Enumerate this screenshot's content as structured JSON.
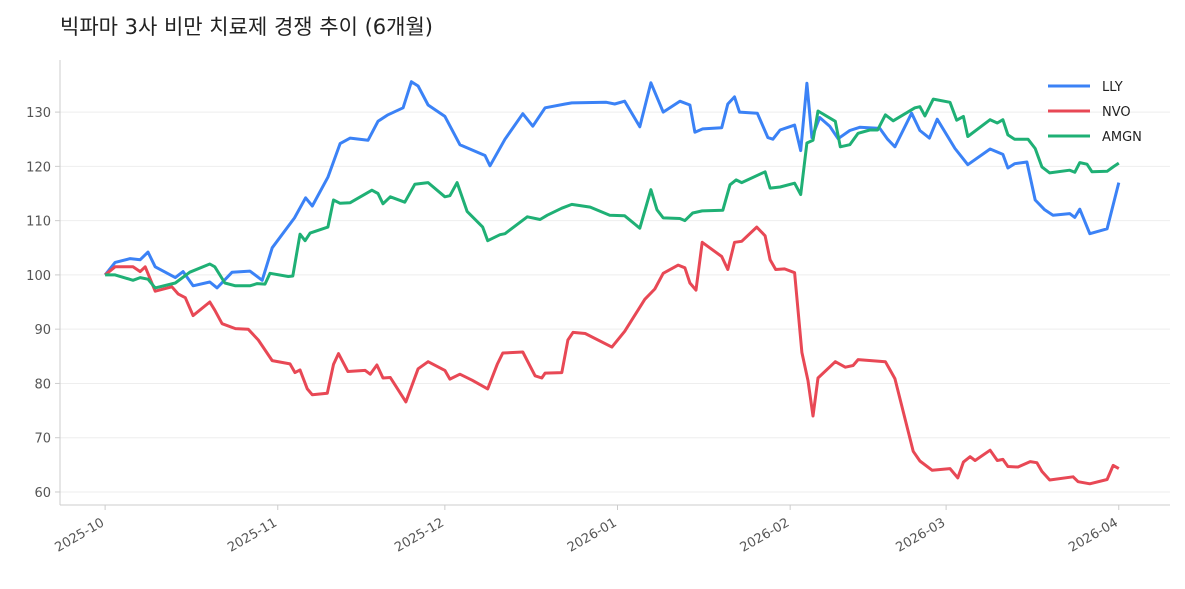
{
  "chart_data": {
    "type": "line",
    "title": "빅파마 3사 비만 치료제 경쟁 추이 (6개월)",
    "xlim": [
      -8.1,
      191.2
    ],
    "ylim": [
      57.6,
      139.6
    ],
    "xticks": [
      {
        "value": 0,
        "label": "2025-10"
      },
      {
        "value": 31,
        "label": "2025-11"
      },
      {
        "value": 61,
        "label": "2025-12"
      },
      {
        "value": 92,
        "label": "2026-01"
      },
      {
        "value": 123,
        "label": "2026-02"
      },
      {
        "value": 151,
        "label": "2026-03"
      },
      {
        "value": 182,
        "label": "2026-04"
      }
    ],
    "yticks": [
      60,
      70,
      80,
      90,
      100,
      110,
      120,
      130
    ],
    "grid": true,
    "legend": "upper right",
    "series": [
      {
        "name": "LLY",
        "color": "#3b82f6",
        "x": [
          0,
          1.8,
          4.5,
          6.3,
          7.7,
          9,
          12.6,
          14,
          15.8,
          18.8,
          20.1,
          22.8,
          26,
          28.2,
          30,
          34,
          36,
          37.2,
          40,
          42.2,
          44,
          47.2,
          49,
          50.8,
          53.5,
          55,
          56.2,
          58,
          61,
          63.7,
          68.2,
          69.1,
          71.8,
          75,
          76.8,
          79,
          82.6,
          83.8,
          90,
          91.5,
          93.3,
          96,
          98,
          100.2,
          103.2,
          105,
          105.9,
          107.3,
          110.7,
          111.8,
          113,
          113.9,
          117.1,
          119,
          119.9,
          121.2,
          123.8,
          124.9,
          126,
          126.9,
          128.3,
          130.1,
          131.6,
          133.7,
          135.5,
          139.1,
          140.5,
          141.8,
          144.8,
          146.3,
          148,
          149.4,
          152.6,
          154.9,
          158.9,
          161.2,
          162.1,
          163.3,
          165.5,
          167,
          168.7,
          170.2,
          173.2,
          174.1,
          175,
          176.8,
          179.9,
          182
        ],
        "values": [
          100,
          102.3,
          103,
          102.8,
          104.2,
          101.5,
          99.5,
          100.6,
          98,
          98.7,
          97.6,
          100.5,
          100.7,
          99,
          105,
          110.5,
          114.2,
          112.7,
          118,
          124.2,
          125.2,
          124.8,
          128.3,
          129.5,
          130.8,
          135.6,
          134.8,
          131.3,
          129.2,
          124,
          122,
          120.1,
          125,
          129.7,
          127.4,
          130.8,
          131.5,
          131.7,
          131.8,
          131.5,
          132,
          127.3,
          135.4,
          130,
          132,
          131.3,
          126.3,
          126.9,
          127.1,
          131.5,
          132.8,
          130,
          129.8,
          125.3,
          125,
          126.7,
          127.6,
          122.9,
          135.3,
          125.3,
          129,
          127.4,
          125.1,
          126.6,
          127.2,
          127,
          125,
          123.6,
          129.8,
          126.6,
          125.2,
          128.7,
          123.3,
          120.3,
          123.2,
          122.2,
          119.7,
          120.5,
          120.8,
          113.8,
          112,
          111,
          111.3,
          110.6,
          112.1,
          107.6,
          108.5,
          117
        ]
      },
      {
        "name": "NVO",
        "color": "#e84855",
        "x": [
          0,
          1.8,
          5,
          6.3,
          7.2,
          9,
          12,
          13.1,
          14.4,
          15.8,
          18.8,
          19.7,
          21,
          23.4,
          25.7,
          27.5,
          30,
          33.2,
          34.1,
          35,
          36.3,
          37.2,
          39.9,
          41,
          41.9,
          43.6,
          46.7,
          47.6,
          48.8,
          49.9,
          51.2,
          54,
          56.2,
          58,
          61,
          61.9,
          63.7,
          65.9,
          68.7,
          70.4,
          71.4,
          75,
          77.2,
          78.4,
          79,
          82,
          83.1,
          84,
          86.2,
          91,
          93.3,
          96.9,
          98.7,
          100.2,
          102.9,
          104.1,
          105,
          106.1,
          107.2,
          110.7,
          111.8,
          113,
          114.3,
          117,
          118.5,
          119.4,
          120.4,
          122,
          123.8,
          125.1,
          126.2,
          127.1,
          128,
          131.1,
          132.9,
          134.3,
          135.2,
          140.1,
          141.8,
          145.1,
          146.3,
          148.5,
          151.7,
          153.1,
          154.1,
          155.3,
          156.2,
          158.9,
          160.2,
          161.2,
          162.1,
          163.9,
          166.1,
          167.3,
          168.2,
          169.6,
          173.8,
          174.7,
          176.8,
          179.9,
          181,
          182
        ],
        "values": [
          100,
          101.5,
          101.5,
          100.6,
          101.5,
          97,
          97.8,
          96.5,
          95.8,
          92.5,
          95,
          93.5,
          91,
          90.1,
          90,
          88,
          84.2,
          83.6,
          82,
          82.5,
          79,
          77.9,
          78.2,
          83.5,
          85.5,
          82.2,
          82.4,
          81.7,
          83.4,
          81,
          81.1,
          76.6,
          82.7,
          84,
          82.4,
          80.8,
          81.7,
          80.6,
          79,
          83.5,
          85.6,
          85.8,
          81.4,
          81,
          81.9,
          82,
          88,
          89.4,
          89.2,
          86.7,
          89.6,
          95.5,
          97.4,
          100.3,
          101.8,
          101.3,
          98.5,
          97.2,
          106,
          103.4,
          101,
          106,
          106.2,
          108.8,
          107.2,
          102.8,
          101,
          101.1,
          100.4,
          85.7,
          80.5,
          74,
          81,
          84,
          83,
          83.3,
          84.4,
          84,
          80.9,
          67.5,
          65.7,
          64,
          64.3,
          62.6,
          65.5,
          66.5,
          65.8,
          67.7,
          65.8,
          66,
          64.7,
          64.6,
          65.6,
          65.4,
          63.8,
          62.2,
          62.8,
          61.9,
          61.5,
          62.3,
          64.9,
          64.3
        ]
      },
      {
        "name": "AMGN",
        "color": "#1fb075",
        "x": [
          0,
          1.8,
          5,
          6.3,
          7.7,
          9,
          12.6,
          15.2,
          18.8,
          19.7,
          21.5,
          23.4,
          26,
          27.3,
          28.7,
          29.6,
          32.9,
          33.7,
          35,
          35.9,
          36.8,
          40,
          41,
          42.2,
          44,
          47.9,
          49,
          49.9,
          51.2,
          53.8,
          55.6,
          58,
          61,
          61.9,
          63.2,
          65,
          67.8,
          68.7,
          70.9,
          71.8,
          75.8,
          78.1,
          79.4,
          82,
          83.8,
          87.1,
          90.6,
          93.3,
          96,
          98,
          99.1,
          100.2,
          103.2,
          104.1,
          105.5,
          107.2,
          110.9,
          112.2,
          113.3,
          114.3,
          118.5,
          119.4,
          121.2,
          123.8,
          124.9,
          126,
          127.1,
          128,
          131.1,
          132,
          133.7,
          135.2,
          137.3,
          138.7,
          140.1,
          141.5,
          145.4,
          146.3,
          147.2,
          148.7,
          151.7,
          152.9,
          154.1,
          154.9,
          158.9,
          160.2,
          161.2,
          162.1,
          163.3,
          165.7,
          167,
          168.2,
          169.6,
          173.2,
          174.1,
          175,
          176.3,
          177.2,
          179.9,
          181,
          182
        ],
        "values": [
          100,
          100,
          99,
          99.5,
          99.2,
          97.6,
          98.5,
          100.5,
          102,
          101.5,
          98.5,
          98,
          98,
          98.4,
          98.3,
          100.3,
          99.7,
          99.8,
          107.5,
          106.3,
          107.7,
          108.8,
          113.8,
          113.2,
          113.3,
          115.6,
          115,
          113.1,
          114.4,
          113.4,
          116.7,
          117,
          114.4,
          114.6,
          117,
          111.7,
          108.8,
          106.3,
          107.4,
          107.6,
          110.7,
          110.2,
          111,
          112.3,
          113,
          112.5,
          111,
          110.9,
          108.6,
          115.7,
          112,
          110.5,
          110.4,
          110,
          111.4,
          111.8,
          111.9,
          116.6,
          117.5,
          117,
          119,
          116,
          116.2,
          116.9,
          114.8,
          124.3,
          124.8,
          130.2,
          128.3,
          123.6,
          124,
          126.1,
          126.7,
          126.7,
          129.5,
          128.4,
          130.8,
          131,
          129.3,
          132.4,
          131.8,
          128.5,
          129.2,
          125.5,
          128.6,
          128,
          128.6,
          125.8,
          125,
          125,
          123.3,
          119.9,
          118.8,
          119.3,
          118.9,
          120.7,
          120.4,
          119,
          119.1,
          119.9,
          120.6
        ]
      }
    ]
  }
}
